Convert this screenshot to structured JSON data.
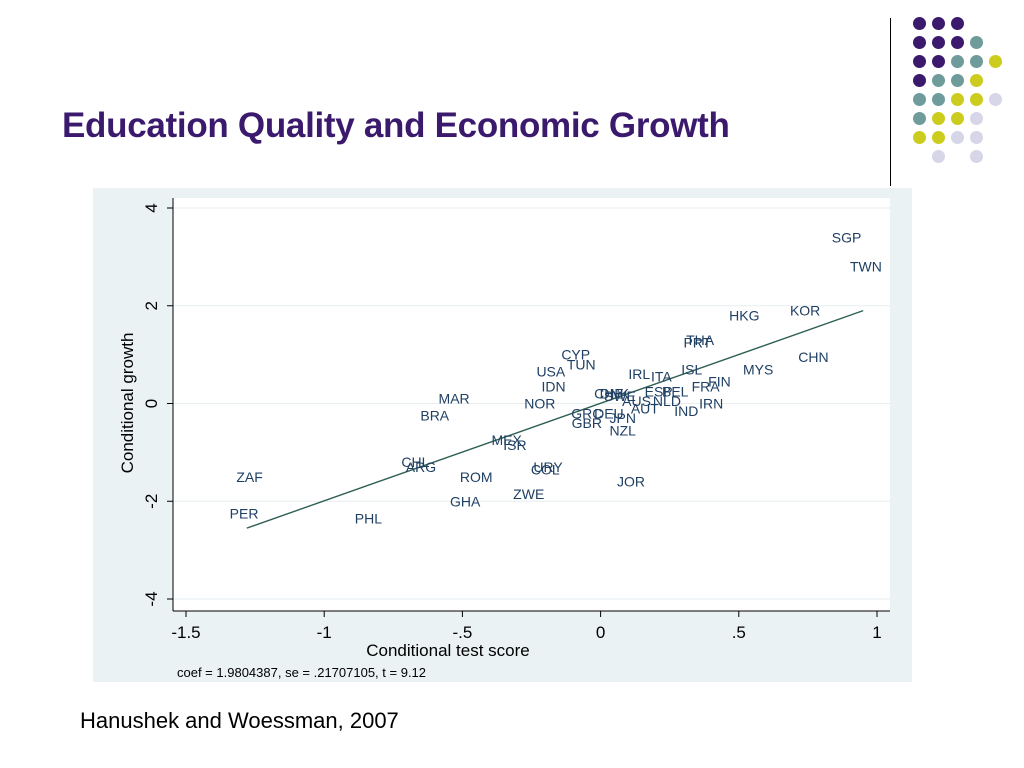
{
  "slide": {
    "title": "Education Quality and Economic Growth",
    "citation": "Hanushek and Woessman, 2007",
    "palette": {
      "purple": "#3b1a6e",
      "teal": "#6f9b9b",
      "yellow": "#cccc1e",
      "lavender": "#d6d6e8"
    },
    "dot_rows": [
      [
        "purple",
        "purple",
        "purple",
        "",
        ""
      ],
      [
        "purple",
        "purple",
        "purple",
        "teal",
        ""
      ],
      [
        "purple",
        "purple",
        "teal",
        "teal",
        "yellow"
      ],
      [
        "purple",
        "teal",
        "teal",
        "yellow",
        ""
      ],
      [
        "teal",
        "teal",
        "yellow",
        "yellow",
        "lavender"
      ],
      [
        "teal",
        "yellow",
        "yellow",
        "lavender",
        ""
      ],
      [
        "yellow",
        "yellow",
        "lavender",
        "lavender",
        ""
      ],
      [
        "",
        "lavender",
        "",
        "lavender",
        ""
      ]
    ]
  },
  "chart_data": {
    "type": "scatter",
    "xlabel": "Conditional test score",
    "ylabel": "Conditional growth",
    "xlim": [
      -1.5,
      1
    ],
    "ylim": [
      -4,
      4
    ],
    "xticks": [
      {
        "value": -1.5,
        "label": "-1.5"
      },
      {
        "value": -1,
        "label": "-1"
      },
      {
        "value": -0.5,
        "label": "-.5"
      },
      {
        "value": 0,
        "label": "0"
      },
      {
        "value": 0.5,
        "label": ".5"
      },
      {
        "value": 1,
        "label": "1"
      }
    ],
    "yticks": [
      {
        "value": 4,
        "label": "4"
      },
      {
        "value": 2,
        "label": "2"
      },
      {
        "value": 0,
        "label": "0"
      },
      {
        "value": -2,
        "label": "-2"
      },
      {
        "value": -4,
        "label": "-4"
      }
    ],
    "grid": true,
    "note": "coef = 1.9804387, se = .21707105, t = 9.12",
    "fit_line": {
      "x": [
        -1.28,
        0.95
      ],
      "y": [
        -2.55,
        1.9
      ]
    },
    "colors": {
      "panel": "#eaf2f3",
      "plot": "#ffffff",
      "points": "#1f3f63",
      "line": "#2e5e55",
      "axis": "#000000",
      "grid": "#e7eef0"
    },
    "points": [
      {
        "label": "SGP",
        "x": 0.89,
        "y": 3.4
      },
      {
        "label": "TWN",
        "x": 0.96,
        "y": 2.8
      },
      {
        "label": "HKG",
        "x": 0.52,
        "y": 1.8
      },
      {
        "label": "KOR",
        "x": 0.74,
        "y": 1.9
      },
      {
        "label": "THA",
        "x": 0.36,
        "y": 1.3
      },
      {
        "label": "PRT",
        "x": 0.35,
        "y": 1.25
      },
      {
        "label": "CHN",
        "x": 0.77,
        "y": 0.95
      },
      {
        "label": "MYS",
        "x": 0.57,
        "y": 0.7
      },
      {
        "label": "CYP",
        "x": -0.09,
        "y": 1.0
      },
      {
        "label": "TUN",
        "x": -0.07,
        "y": 0.8
      },
      {
        "label": "USA",
        "x": -0.18,
        "y": 0.65
      },
      {
        "label": "IDN",
        "x": -0.17,
        "y": 0.35
      },
      {
        "label": "IRL",
        "x": 0.14,
        "y": 0.6
      },
      {
        "label": "ITA",
        "x": 0.22,
        "y": 0.55
      },
      {
        "label": "ISL",
        "x": 0.33,
        "y": 0.7
      },
      {
        "label": "FIN",
        "x": 0.43,
        "y": 0.45
      },
      {
        "label": "FRA",
        "x": 0.38,
        "y": 0.35
      },
      {
        "label": "ESP",
        "x": 0.21,
        "y": 0.25
      },
      {
        "label": "BEL",
        "x": 0.27,
        "y": 0.25
      },
      {
        "label": "CHE",
        "x": 0.03,
        "y": 0.2
      },
      {
        "label": "DNK",
        "x": 0.05,
        "y": 0.2
      },
      {
        "label": "SWE",
        "x": 0.07,
        "y": 0.15
      },
      {
        "label": "NLD",
        "x": 0.24,
        "y": 0.05
      },
      {
        "label": "AUS",
        "x": 0.13,
        "y": 0.05
      },
      {
        "label": "AUT",
        "x": 0.16,
        "y": -0.1
      },
      {
        "label": "IRN",
        "x": 0.4,
        "y": 0.0
      },
      {
        "label": "IND",
        "x": 0.31,
        "y": -0.15
      },
      {
        "label": "MAR",
        "x": -0.53,
        "y": 0.1
      },
      {
        "label": "BRA",
        "x": -0.6,
        "y": -0.25
      },
      {
        "label": "NOR",
        "x": -0.22,
        "y": 0.0
      },
      {
        "label": "GRC",
        "x": -0.05,
        "y": -0.2
      },
      {
        "label": "DEU",
        "x": 0.03,
        "y": -0.2
      },
      {
        "label": "JPN",
        "x": 0.08,
        "y": -0.3
      },
      {
        "label": "GBR",
        "x": -0.05,
        "y": -0.4
      },
      {
        "label": "NZL",
        "x": 0.08,
        "y": -0.55
      },
      {
        "label": "MEX",
        "x": -0.34,
        "y": -0.75
      },
      {
        "label": "ISR",
        "x": -0.31,
        "y": -0.85
      },
      {
        "label": "CHL",
        "x": -0.67,
        "y": -1.2
      },
      {
        "label": "ARG",
        "x": -0.65,
        "y": -1.3
      },
      {
        "label": "URY",
        "x": -0.19,
        "y": -1.3
      },
      {
        "label": "COL",
        "x": -0.2,
        "y": -1.35
      },
      {
        "label": "ROM",
        "x": -0.45,
        "y": -1.5
      },
      {
        "label": "ZAF",
        "x": -1.27,
        "y": -1.5
      },
      {
        "label": "JOR",
        "x": 0.11,
        "y": -1.6
      },
      {
        "label": "ZWE",
        "x": -0.26,
        "y": -1.85
      },
      {
        "label": "GHA",
        "x": -0.49,
        "y": -2.0
      },
      {
        "label": "PER",
        "x": -1.29,
        "y": -2.25
      },
      {
        "label": "PHL",
        "x": -0.84,
        "y": -2.35
      }
    ]
  }
}
